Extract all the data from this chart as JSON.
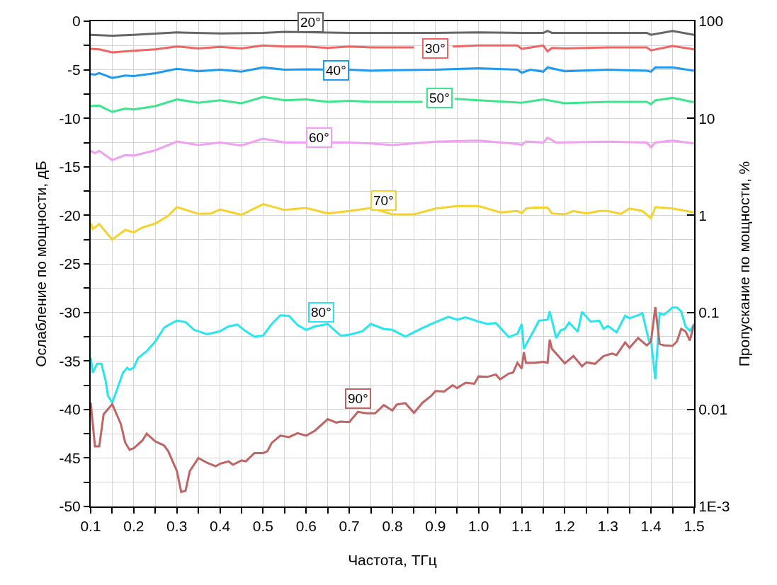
{
  "chart_data": {
    "type": "line",
    "xlabel": "Частота, ТГц",
    "ylabel": "Ослабление по мощности, дБ",
    "y2label": "Пропускание по мощности, %",
    "xlim": [
      0.1,
      1.5
    ],
    "xticks": [
      0.1,
      {
        "value": 0.15,
        "label": null
      },
      0.2,
      {
        "value": 0.25,
        "label": null
      },
      0.3,
      {
        "value": 0.35,
        "label": null
      },
      0.4,
      {
        "value": 0.45,
        "label": null
      },
      0.5,
      {
        "value": 0.55,
        "label": null
      },
      0.6,
      {
        "value": 0.65,
        "label": null
      },
      0.7,
      {
        "value": 0.75,
        "label": null
      },
      0.8,
      {
        "value": 0.85,
        "label": null
      },
      0.9,
      {
        "value": 0.95,
        "label": null
      },
      {
        "value": 1.0,
        "label": "1.0"
      },
      {
        "value": 1.05,
        "label": null
      },
      1.1,
      {
        "value": 1.15,
        "label": null
      },
      1.2,
      {
        "value": 1.25,
        "label": null
      },
      1.3,
      {
        "value": 1.35,
        "label": null
      },
      1.4,
      {
        "value": 1.45,
        "label": null
      },
      1.5
    ],
    "ylim": [
      -50,
      0
    ],
    "yticks": [
      -50,
      {
        "value": -47.5,
        "label": null
      },
      -45,
      {
        "value": -42.5,
        "label": null
      },
      -40,
      {
        "value": -37.5,
        "label": null
      },
      -35,
      {
        "value": -32.5,
        "label": null
      },
      -30,
      {
        "value": -27.5,
        "label": null
      },
      -25,
      {
        "value": -22.5,
        "label": null
      },
      -20,
      {
        "value": -17.5,
        "label": null
      },
      -15,
      {
        "value": -12.5,
        "label": null
      },
      -10,
      {
        "value": -7.5,
        "label": null
      },
      -5,
      {
        "value": -2.5,
        "label": null
      },
      0
    ],
    "y2lim": [
      0.001,
      100
    ],
    "y2ticks": [
      {
        "value": 0.001,
        "label": "1E-3"
      },
      0.01,
      0.1,
      1,
      10,
      100
    ],
    "log": "y2",
    "grid": true,
    "marker": "none",
    "line_style": "solid",
    "series": [
      {
        "color": "#666666",
        "x": [
          0.1,
          0.15,
          0.2,
          0.3,
          0.4,
          0.5,
          0.55,
          0.7,
          0.8,
          0.9,
          1.0,
          1.1,
          1.15,
          1.16,
          1.17,
          1.3,
          1.39,
          1.4,
          1.45,
          1.5
        ],
        "values": [
          -1.4,
          -1.5,
          -1.4,
          -1.15,
          -1.25,
          -1.2,
          -1.1,
          -1.2,
          -1.2,
          -1.2,
          -1.15,
          -1.2,
          -1.2,
          -1.0,
          -1.2,
          -1.2,
          -1.2,
          -1.4,
          -1.0,
          -1.4
        ]
      },
      {
        "color": "#f06464",
        "x": [
          0.1,
          0.12,
          0.15,
          0.2,
          0.25,
          0.3,
          0.35,
          0.4,
          0.45,
          0.5,
          0.55,
          0.6,
          0.65,
          0.7,
          0.75,
          0.8,
          0.85,
          0.9,
          0.94,
          1.0,
          1.09,
          1.1,
          1.15,
          1.16,
          1.17,
          1.2,
          1.3,
          1.39,
          1.4,
          1.45,
          1.5
        ],
        "values": [
          -2.85,
          -2.9,
          -3.2,
          -3.05,
          -2.9,
          -2.6,
          -2.8,
          -2.65,
          -2.8,
          -2.5,
          -2.6,
          -2.6,
          -2.75,
          -2.6,
          -2.7,
          -2.7,
          -2.7,
          null,
          -2.6,
          -2.5,
          -2.5,
          -2.85,
          -2.5,
          -3.1,
          -2.75,
          -2.8,
          -2.7,
          -2.7,
          -3.0,
          -2.55,
          -2.9
        ]
      },
      {
        "color": "#1e9bf0",
        "x": [
          0.1,
          0.11,
          0.12,
          0.15,
          0.18,
          0.2,
          0.25,
          0.3,
          0.35,
          0.4,
          0.45,
          0.5,
          0.55,
          0.6,
          0.7,
          0.75,
          0.8,
          0.9,
          1.0,
          1.09,
          1.1,
          1.12,
          1.15,
          1.16,
          1.2,
          1.3,
          1.39,
          1.4,
          1.41,
          1.45,
          1.5
        ],
        "values": [
          -5.45,
          -5.5,
          -5.35,
          -5.85,
          -5.6,
          -5.65,
          -5.35,
          -4.9,
          -5.15,
          -5.0,
          -5.2,
          -4.75,
          -5.0,
          -4.95,
          -5.0,
          -5.1,
          -5.05,
          -5.0,
          -4.85,
          -5.0,
          -5.3,
          -5.0,
          -5.2,
          -4.75,
          -5.15,
          -5.0,
          -5.1,
          -5.2,
          -4.75,
          -4.75,
          -5.1
        ]
      },
      {
        "color": "#3ce68c",
        "x": [
          0.1,
          0.12,
          0.15,
          0.18,
          0.2,
          0.25,
          0.3,
          0.35,
          0.4,
          0.45,
          0.5,
          0.55,
          0.6,
          0.65,
          0.7,
          0.75,
          0.8,
          0.87,
          0.9,
          0.945,
          1.0,
          1.1,
          1.15,
          1.2,
          1.3,
          1.39,
          1.4,
          1.41,
          1.45,
          1.5
        ],
        "values": [
          -8.75,
          -8.7,
          -9.35,
          -9.0,
          -9.1,
          -8.75,
          -8.05,
          -8.4,
          -8.15,
          -8.45,
          -7.8,
          -8.15,
          -8.05,
          -8.3,
          -8.2,
          -8.3,
          -8.3,
          -8.3,
          null,
          -8.0,
          -8.15,
          -8.4,
          -8.05,
          -8.45,
          -8.3,
          -8.3,
          -8.55,
          -8.15,
          -7.9,
          -8.35
        ]
      },
      {
        "color": "#f0a0f0",
        "x": [
          0.1,
          0.11,
          0.12,
          0.15,
          0.18,
          0.2,
          0.25,
          0.3,
          0.35,
          0.4,
          0.45,
          0.5,
          0.55,
          0.6,
          0.7,
          0.75,
          0.8,
          0.9,
          1.0,
          1.09,
          1.1,
          1.11,
          1.15,
          1.16,
          1.18,
          1.3,
          1.39,
          1.4,
          1.41,
          1.45,
          1.5
        ],
        "values": [
          -13.35,
          -13.6,
          -13.35,
          -14.3,
          -13.8,
          -13.85,
          -13.3,
          -12.4,
          -12.75,
          -12.5,
          -12.8,
          -12.1,
          -12.5,
          -12.5,
          -12.5,
          -12.6,
          -12.75,
          -12.4,
          -12.3,
          -12.65,
          -12.75,
          -12.4,
          -12.5,
          -12.0,
          -12.5,
          -12.4,
          -12.5,
          -13.0,
          -12.5,
          -12.3,
          -12.6
        ]
      },
      {
        "color": "#f5d22d",
        "x": [
          0.1,
          0.105,
          0.12,
          0.15,
          0.18,
          0.2,
          0.22,
          0.25,
          0.28,
          0.3,
          0.35,
          0.38,
          0.4,
          0.45,
          0.5,
          0.55,
          0.6,
          0.65,
          0.7,
          0.75,
          0.8,
          0.85,
          0.9,
          0.95,
          1.0,
          1.05,
          1.09,
          1.1,
          1.11,
          1.13,
          1.16,
          1.17,
          1.2,
          1.22,
          1.25,
          1.28,
          1.3,
          1.33,
          1.35,
          1.38,
          1.4,
          1.41,
          1.45,
          1.5
        ],
        "values": [
          -20.8,
          -21.4,
          -20.9,
          -22.5,
          -21.5,
          -21.75,
          -21.25,
          -20.85,
          -20.05,
          -19.15,
          -19.85,
          -19.8,
          -19.4,
          -19.95,
          -18.85,
          -19.45,
          -19.25,
          -19.8,
          -19.55,
          -19.25,
          -19.9,
          -19.9,
          -19.3,
          -19.05,
          -19.05,
          -19.7,
          -19.55,
          -19.8,
          -19.3,
          -19.2,
          -19.2,
          -19.8,
          -19.9,
          -19.55,
          -19.8,
          -19.55,
          -19.55,
          -19.85,
          -19.3,
          -19.55,
          -20.3,
          -19.15,
          -19.3,
          -19.7
        ]
      },
      {
        "color": "#28e6f0",
        "x": [
          0.1,
          0.105,
          0.115,
          0.125,
          0.135,
          0.14,
          0.15,
          0.16,
          0.175,
          0.185,
          0.19,
          0.2,
          0.21,
          0.23,
          0.25,
          0.27,
          0.28,
          0.3,
          0.32,
          0.34,
          0.37,
          0.4,
          0.42,
          0.44,
          0.46,
          0.48,
          0.5,
          0.52,
          0.54,
          0.56,
          0.58,
          0.6,
          0.62,
          0.65,
          0.68,
          0.7,
          0.73,
          0.75,
          0.78,
          0.8,
          0.83,
          0.87,
          0.9,
          0.93,
          0.95,
          0.97,
          1.0,
          1.02,
          1.04,
          1.07,
          1.09,
          1.1,
          1.105,
          1.13,
          1.14,
          1.16,
          1.165,
          1.18,
          1.19,
          1.2,
          1.21,
          1.23,
          1.24,
          1.26,
          1.28,
          1.29,
          1.3,
          1.32,
          1.34,
          1.35,
          1.37,
          1.38,
          1.395,
          1.4,
          1.41,
          1.42,
          1.43,
          1.45,
          1.46,
          1.47,
          1.48,
          1.49,
          1.5
        ],
        "values": [
          -34.7,
          -36.2,
          -35.3,
          -35.3,
          -37.1,
          -38.6,
          -39.3,
          -38.1,
          -36.2,
          -35.7,
          -35.9,
          -35.7,
          -34.7,
          -34.0,
          -33.0,
          -31.6,
          -31.3,
          -30.85,
          -31.0,
          -31.8,
          -32.25,
          -31.95,
          -31.45,
          -31.25,
          -31.95,
          -32.5,
          -32.4,
          -31.2,
          -30.3,
          -30.35,
          -31.3,
          -31.8,
          -31.45,
          -31.2,
          -32.4,
          -32.3,
          -31.95,
          -31.2,
          -31.7,
          -31.8,
          -32.5,
          -31.6,
          -31.0,
          -30.45,
          -30.75,
          -30.5,
          -30.95,
          -31.2,
          -31.1,
          -32.55,
          -32.2,
          -31.2,
          -33.75,
          -31.7,
          -30.85,
          -30.75,
          -29.9,
          -32.65,
          -31.85,
          -31.7,
          -31.05,
          -32.0,
          -29.95,
          -30.95,
          -30.85,
          -31.7,
          -31.4,
          -32.05,
          -30.35,
          -30.6,
          -30.3,
          -30.1,
          -32.9,
          -32.9,
          -36.9,
          -30.1,
          -30.25,
          -29.5,
          -29.5,
          -29.9,
          -31.45,
          -31.9,
          -31.2
        ]
      },
      {
        "color": "#c06464",
        "x": [
          0.1,
          0.11,
          0.12,
          0.13,
          0.15,
          0.17,
          0.18,
          0.19,
          0.2,
          0.22,
          0.23,
          0.25,
          0.27,
          0.28,
          0.3,
          0.31,
          0.32,
          0.33,
          0.35,
          0.37,
          0.39,
          0.4,
          0.42,
          0.43,
          0.45,
          0.46,
          0.48,
          0.5,
          0.51,
          0.52,
          0.54,
          0.56,
          0.58,
          0.6,
          0.62,
          0.65,
          0.67,
          0.68,
          0.7,
          0.72,
          0.74,
          0.76,
          0.78,
          0.8,
          0.81,
          0.83,
          0.85,
          0.87,
          0.89,
          0.9,
          0.92,
          0.94,
          0.95,
          0.97,
          0.99,
          1.0,
          1.02,
          1.04,
          1.05,
          1.07,
          1.08,
          1.09,
          1.1,
          1.105,
          1.11,
          1.13,
          1.15,
          1.16,
          1.165,
          1.17,
          1.2,
          1.22,
          1.24,
          1.25,
          1.27,
          1.29,
          1.31,
          1.32,
          1.34,
          1.35,
          1.37,
          1.39,
          1.4,
          1.41,
          1.42,
          1.43,
          1.45,
          1.46,
          1.47,
          1.48,
          1.49,
          1.5
        ],
        "values": [
          -39.3,
          -43.8,
          -43.8,
          -40.5,
          -39.45,
          -41.5,
          -43.4,
          -44.15,
          -44.0,
          -43.2,
          -42.5,
          -43.3,
          -43.7,
          -44.3,
          -46.35,
          -48.5,
          -48.4,
          -46.35,
          -45.0,
          -45.5,
          -45.85,
          -45.6,
          -45.35,
          -45.7,
          -45.25,
          -45.35,
          -44.5,
          -44.5,
          -44.3,
          -43.45,
          -42.7,
          -42.85,
          -42.45,
          -42.7,
          -42.2,
          -41.0,
          -41.35,
          -41.25,
          -41.3,
          -40.25,
          -40.4,
          -40.4,
          -39.55,
          -40.1,
          -39.5,
          -39.35,
          -40.35,
          -39.3,
          -38.6,
          -38.1,
          -38.15,
          -37.5,
          -37.8,
          -37.25,
          -37.35,
          -36.6,
          -36.65,
          -36.4,
          -36.9,
          -36.3,
          -36.2,
          -35.2,
          -35.8,
          -34.1,
          -35.2,
          -35.2,
          -35.1,
          -35.2,
          -32.8,
          -33.75,
          -35.25,
          -34.5,
          -35.55,
          -35.15,
          -35.3,
          -34.5,
          -34.25,
          -34.4,
          -33.1,
          -33.65,
          -32.65,
          -33.4,
          -33.0,
          -29.45,
          -33.25,
          -33.4,
          -33.45,
          -33.0,
          -31.7,
          -31.95,
          -32.9,
          -31.2
        ]
      }
    ],
    "annotations": [
      {
        "text": "20°",
        "x": 0.61,
        "y": -0.1
      },
      {
        "text": "30°",
        "x": 0.9,
        "y": -2.8
      },
      {
        "text": "40°",
        "x": 0.67,
        "y": -5.1
      },
      {
        "text": "50°",
        "x": 0.91,
        "y": -7.9
      },
      {
        "text": "60°",
        "x": 0.63,
        "y": -12.0
      },
      {
        "text": "70°",
        "x": 0.78,
        "y": -18.5
      },
      {
        "text": "80°",
        "x": 0.635,
        "y": -30.0
      },
      {
        "text": "90°",
        "x": 0.72,
        "y": -38.9
      }
    ]
  }
}
